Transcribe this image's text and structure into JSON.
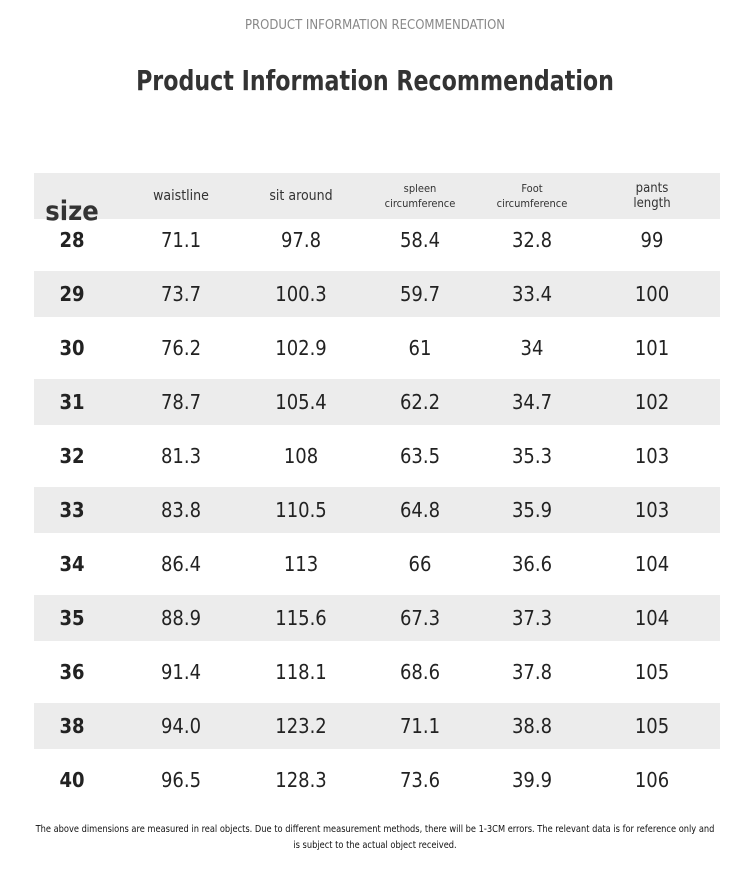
{
  "header": {
    "kicker": "PRODUCT INFORMATION RECOMMENDATION",
    "title": "Product Information Recommendation"
  },
  "table": {
    "columns": [
      "size",
      "waistline",
      "sit around",
      "spleen circumference",
      "Foot circumference",
      "pants length"
    ],
    "rows": [
      [
        "28",
        "71.1",
        "97.8",
        "58.4",
        "32.8",
        "99"
      ],
      [
        "29",
        "73.7",
        "100.3",
        "59.7",
        "33.4",
        "100"
      ],
      [
        "30",
        "76.2",
        "102.9",
        "61",
        "34",
        "101"
      ],
      [
        "31",
        "78.7",
        "105.4",
        "62.2",
        "34.7",
        "102"
      ],
      [
        "32",
        "81.3",
        "108",
        "63.5",
        "35.3",
        "103"
      ],
      [
        "33",
        "83.8",
        "110.5",
        "64.8",
        "35.9",
        "103"
      ],
      [
        "34",
        "86.4",
        "113",
        "66",
        "36.6",
        "104"
      ],
      [
        "35",
        "88.9",
        "115.6",
        "67.3",
        "37.3",
        "104"
      ],
      [
        "36",
        "91.4",
        "118.1",
        "68.6",
        "37.8",
        "105"
      ],
      [
        "38",
        "94.0",
        "123.2",
        "71.1",
        "38.8",
        "105"
      ],
      [
        "40",
        "96.5",
        "128.3",
        "73.6",
        "39.9",
        "106"
      ]
    ]
  },
  "footnote": "The above dimensions are measured in real objects. Due to different measurement methods, there will be 1-3CM errors. The relevant data is for reference only and is subject to the actual object received."
}
